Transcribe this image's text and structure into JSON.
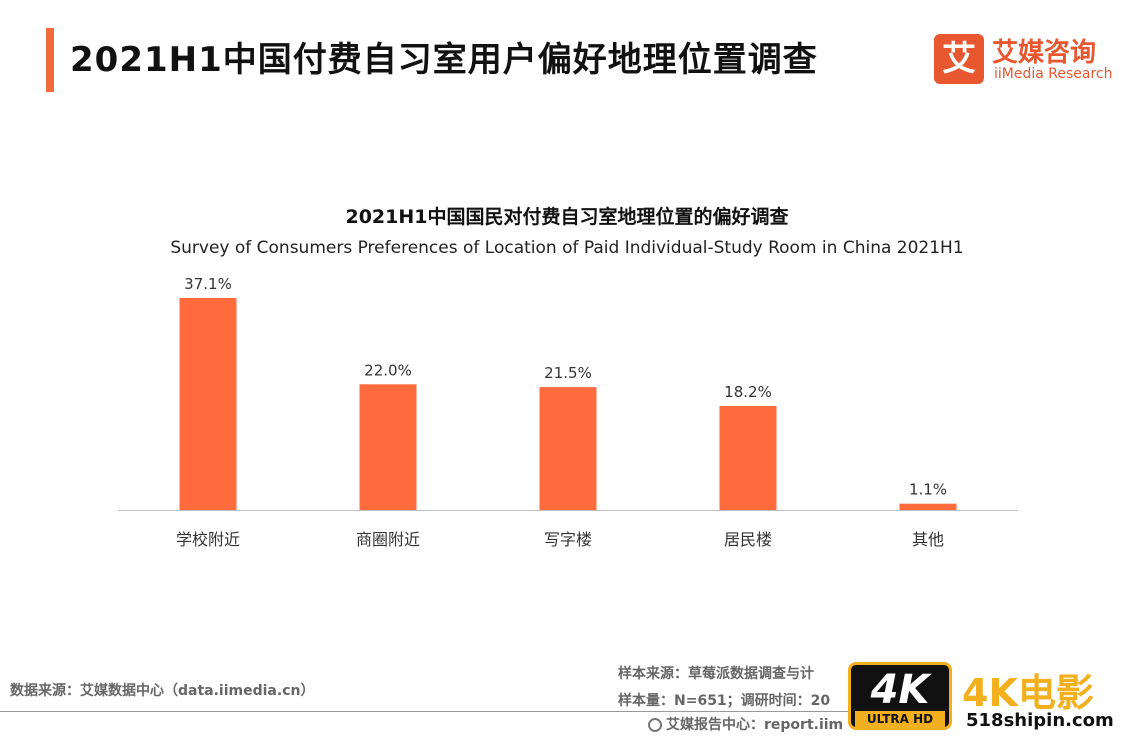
{
  "header": {
    "title": "2021H1中国付费自习室用户偏好地理位置调查"
  },
  "logo": {
    "mark": "艾",
    "name_cn": "艾媒咨询",
    "name_en": "iiMedia Research"
  },
  "chart_data": {
    "type": "bar",
    "title": "2021H1中国国民对付费自习室地理位置的偏好调查",
    "subtitle": "Survey of Consumers Preferences of Location of Paid Individual-Study Room in China 2021H1",
    "categories": [
      "学校附近",
      "商圈附近",
      "写字楼",
      "居民楼",
      "其他"
    ],
    "values": [
      37.1,
      22.0,
      21.5,
      18.2,
      1.1
    ],
    "value_labels": [
      "37.1%",
      "22.0%",
      "21.5%",
      "18.2%",
      "1.1%"
    ],
    "unit": "%",
    "ylim": [
      0,
      37.1
    ],
    "grid": false,
    "bar_color": "#ff6b3d",
    "axis_color": "#bfbfbf"
  },
  "footer": {
    "source": "数据来源：艾媒数据中心（data.iimedia.cn）",
    "sample_source": "样本来源：草莓派数据调查与计",
    "sample_size": "样本量：N=651；调研时间：20",
    "report_center": "艾媒报告中心：report.iim"
  },
  "watermark": {
    "badge_main": "4K",
    "badge_sub": "ULTRA HD",
    "brand": "4K电影",
    "url": "518shipin.com"
  },
  "colors": {
    "accent": "#f26b3a",
    "brand": "#e8572f"
  }
}
